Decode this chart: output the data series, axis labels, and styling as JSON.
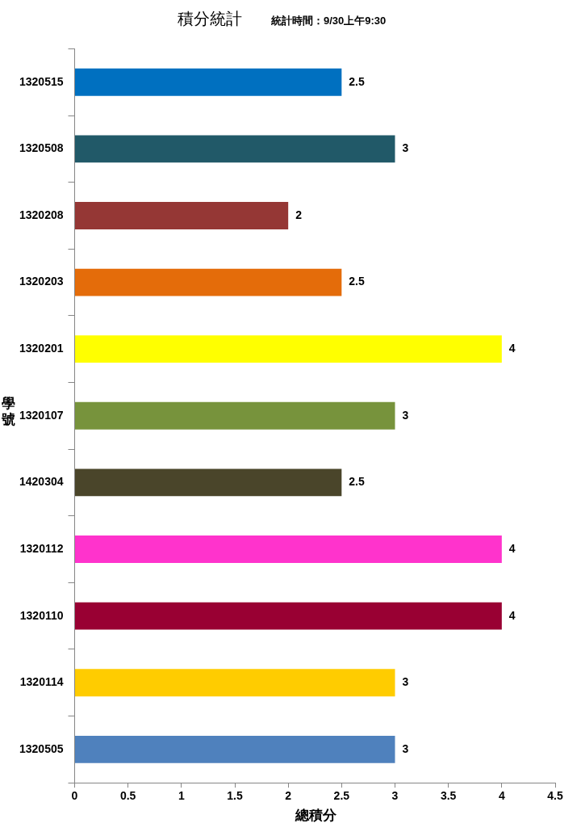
{
  "chart_data": {
    "type": "bar",
    "orientation": "horizontal",
    "title": "積分統計",
    "subtitle": "統計時間：9/30上午9:30",
    "xlabel": "總積分",
    "ylabel": "學號",
    "categories": [
      "1320515",
      "1320508",
      "1320208",
      "1320203",
      "1320201",
      "1320107",
      "1420304",
      "1320112",
      "1320110",
      "1320114",
      "1320505"
    ],
    "values": [
      2.5,
      3,
      2,
      2.5,
      4,
      3,
      2.5,
      4,
      4,
      3,
      3
    ],
    "colors": [
      "#0070c0",
      "#215968",
      "#953735",
      "#e46c0a",
      "#ffff00",
      "#77933c",
      "#4a452a",
      "#ff33cc",
      "#990033",
      "#ffcc00",
      "#4f81bd"
    ],
    "xlim": [
      0,
      4.5
    ],
    "xticks": [
      0,
      0.5,
      1,
      1.5,
      2,
      2.5,
      3,
      3.5,
      4,
      4.5
    ],
    "grid": false,
    "legend": false,
    "data_labels": true
  }
}
